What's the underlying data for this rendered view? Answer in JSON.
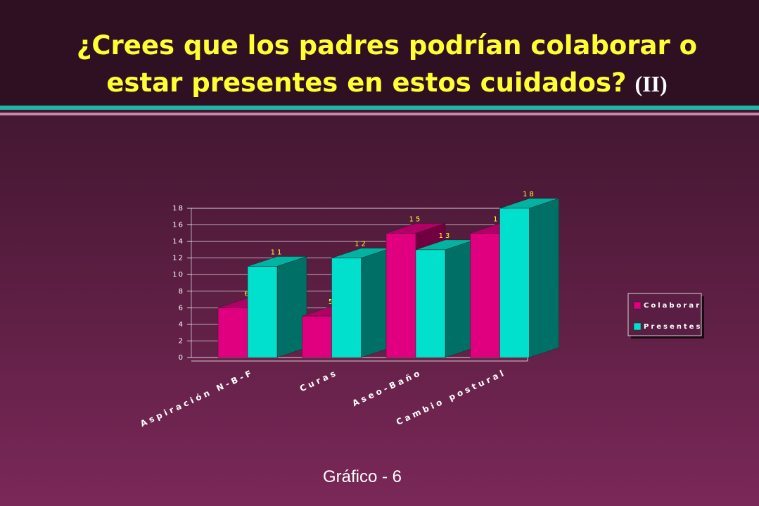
{
  "title": [
    "¿Crees que los padres podrían colaborar o",
    "estar presentes en estos cuidados?"
  ],
  "title_suffix": "(II)",
  "caption": "Gráfico - 6",
  "chart_data": {
    "type": "bar3d",
    "categories": [
      "Aspiración N-B-F",
      "Curas",
      "Aseo-Baño",
      "Cambio postural"
    ],
    "series": [
      {
        "name": "Colaborar",
        "color": "#e0007f",
        "values": [
          6,
          5,
          15,
          15
        ]
      },
      {
        "name": "Presentes",
        "color": "#00e0cc",
        "values": [
          11,
          12,
          13,
          18
        ]
      }
    ],
    "ylim": [
      0,
      18
    ],
    "yticks": [
      0,
      2,
      4,
      6,
      8,
      10,
      12,
      14,
      16,
      18
    ],
    "grid": true,
    "legend": "right"
  }
}
